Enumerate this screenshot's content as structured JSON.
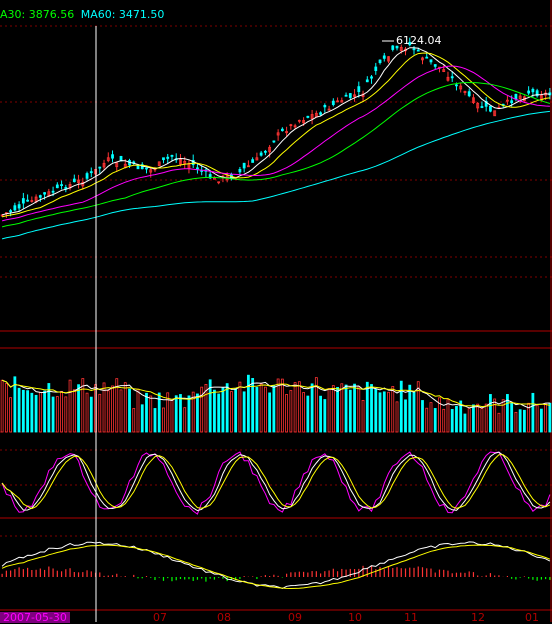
{
  "header": {
    "ma30_label": "A30: 3876.56",
    "ma60_label": "MA60: 3471.50",
    "ma30_color": "#00ff00",
    "ma60_color": "#00ffff"
  },
  "price_panel": {
    "peak_label": "6124.04",
    "peak_color": "#ffffff"
  },
  "x_axis": {
    "months": [
      "07",
      "08",
      "09",
      "10",
      "11",
      "12",
      "01"
    ],
    "cursor_date": "2007-05-30"
  },
  "colors": {
    "background": "#000000",
    "up_candle": "#ff3333",
    "down_candle": "#00ffff",
    "grid": "#800000",
    "crosshair": "#ffffff",
    "ma5": "#ffffff",
    "ma10": "#ffff00",
    "ma20": "#ff00ff",
    "ma30": "#00ff00",
    "ma60": "#00ffff",
    "macd_up": "#ff3333",
    "macd_down": "#00ff00"
  }
}
